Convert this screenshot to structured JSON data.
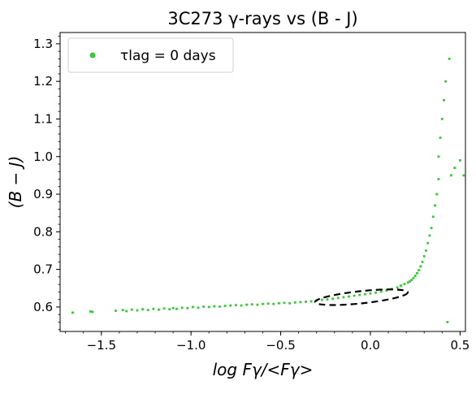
{
  "chart_data": {
    "type": "scatter",
    "title": "3C273     γ-rays vs (B - J)",
    "xlabel": "log Fγ/<Fγ>",
    "ylabel": "(B − J)",
    "xlim": [
      -1.73,
      0.53
    ],
    "ylim": [
      0.535,
      1.33
    ],
    "x_ticks": [
      -1.5,
      -1.0,
      -0.5,
      0.0,
      0.5
    ],
    "x_tick_labels": [
      "−1.5",
      "−1.0",
      "−0.5",
      "0.0",
      "0.5"
    ],
    "y_ticks": [
      0.6,
      0.7,
      0.8,
      0.9,
      1.0,
      1.1,
      1.2,
      1.3
    ],
    "y_tick_labels": [
      "0.6",
      "0.7",
      "0.8",
      "0.9",
      "1.0",
      "1.1",
      "1.2",
      "1.3"
    ],
    "grid": false,
    "legend_position": "top-left",
    "legend": {
      "marker_color": "#33cc33",
      "text": "τlag = 0  days"
    },
    "series": [
      {
        "name": "τlag = 0  days",
        "color": "#33cc33",
        "x": [
          -1.66,
          -1.56,
          -1.55,
          -1.42,
          -1.38,
          -1.36,
          -1.33,
          -1.3,
          -1.27,
          -1.24,
          -1.21,
          -1.18,
          -1.15,
          -1.12,
          -1.1,
          -1.08,
          -1.05,
          -1.02,
          -0.99,
          -0.96,
          -0.93,
          -0.9,
          -0.87,
          -0.84,
          -0.81,
          -0.78,
          -0.75,
          -0.72,
          -0.69,
          -0.66,
          -0.63,
          -0.6,
          -0.57,
          -0.54,
          -0.51,
          -0.48,
          -0.45,
          -0.42,
          -0.39,
          -0.36,
          -0.33,
          -0.3,
          -0.27,
          -0.24,
          -0.21,
          -0.18,
          -0.15,
          -0.12,
          -0.09,
          -0.06,
          -0.03,
          0.0,
          0.03,
          0.06,
          0.09,
          0.12,
          0.15,
          0.17,
          0.19,
          0.21,
          0.22,
          0.23,
          0.24,
          0.25,
          0.26,
          0.27,
          0.28,
          0.29,
          0.3,
          0.31,
          0.32,
          0.33,
          0.34,
          0.35,
          0.36,
          0.37,
          0.38,
          0.38,
          0.39,
          0.4,
          0.41,
          0.42,
          0.43,
          0.44,
          0.45,
          0.47,
          0.5,
          0.52
        ],
        "y": [
          0.585,
          0.588,
          0.587,
          0.59,
          0.592,
          0.589,
          0.593,
          0.591,
          0.594,
          0.592,
          0.595,
          0.593,
          0.596,
          0.594,
          0.597,
          0.595,
          0.598,
          0.597,
          0.6,
          0.598,
          0.601,
          0.6,
          0.602,
          0.601,
          0.603,
          0.604,
          0.605,
          0.604,
          0.606,
          0.607,
          0.606,
          0.608,
          0.609,
          0.608,
          0.61,
          0.611,
          0.61,
          0.612,
          0.613,
          0.614,
          0.615,
          0.617,
          0.619,
          0.62,
          0.622,
          0.624,
          0.626,
          0.628,
          0.63,
          0.632,
          0.634,
          0.636,
          0.638,
          0.641,
          0.644,
          0.648,
          0.652,
          0.657,
          0.661,
          0.665,
          0.668,
          0.672,
          0.677,
          0.683,
          0.69,
          0.698,
          0.708,
          0.72,
          0.735,
          0.75,
          0.77,
          0.79,
          0.81,
          0.84,
          0.87,
          0.9,
          0.94,
          1.0,
          1.05,
          1.1,
          1.15,
          1.2,
          0.56,
          1.26,
          0.95,
          0.97,
          0.99,
          0.95
        ]
      }
    ],
    "annotations": [
      {
        "type": "ellipse",
        "style": "dashed",
        "color": "#000000",
        "center": [
          -0.05,
          0.626
        ],
        "x_extent": [
          -0.31,
          0.21
        ],
        "y_extent": [
          0.6,
          0.652
        ]
      }
    ]
  }
}
